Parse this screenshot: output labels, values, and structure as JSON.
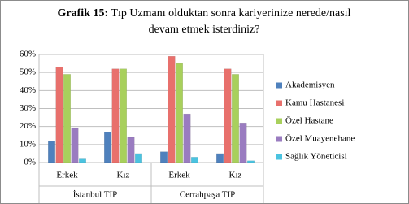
{
  "chart_data": {
    "type": "bar",
    "title_label": "Grafik 15:",
    "title": "Tıp Uzmanı olduktan sonra kariyerinize nerede/nasıl devam etmek isterdiniz?",
    "categories": [
      "Erkek",
      "Kız",
      "Erkek",
      "Kız"
    ],
    "groups": [
      "İstanbul TIP",
      "Cerrahpaşa TIP"
    ],
    "series": [
      {
        "name": "Akademisyen",
        "color": "#4f81bd",
        "values": [
          12,
          17,
          6,
          5
        ]
      },
      {
        "name": "Kamu Hastanesi",
        "color": "#e8706c",
        "values": [
          53,
          52,
          59,
          52
        ]
      },
      {
        "name": "Özel Hastane",
        "color": "#a8d05c",
        "values": [
          49,
          52,
          55,
          49
        ]
      },
      {
        "name": "Özel Muayenehane",
        "color": "#9a7cc0",
        "values": [
          19,
          14,
          27,
          22
        ]
      },
      {
        "name": "Sağlık Yöneticisi",
        "color": "#4bc3e0",
        "values": [
          2,
          5,
          3,
          1
        ]
      }
    ],
    "ylim": [
      0,
      60
    ],
    "yticks": [
      {
        "value": 0,
        "label": "0%"
      },
      {
        "value": 10,
        "label": "10%"
      },
      {
        "value": 20,
        "label": "20%"
      },
      {
        "value": 30,
        "label": "30%"
      },
      {
        "value": 40,
        "label": "40%"
      },
      {
        "value": 50,
        "label": "50%"
      },
      {
        "value": 60,
        "label": "60%"
      }
    ],
    "grid": true,
    "legend": "right"
  }
}
